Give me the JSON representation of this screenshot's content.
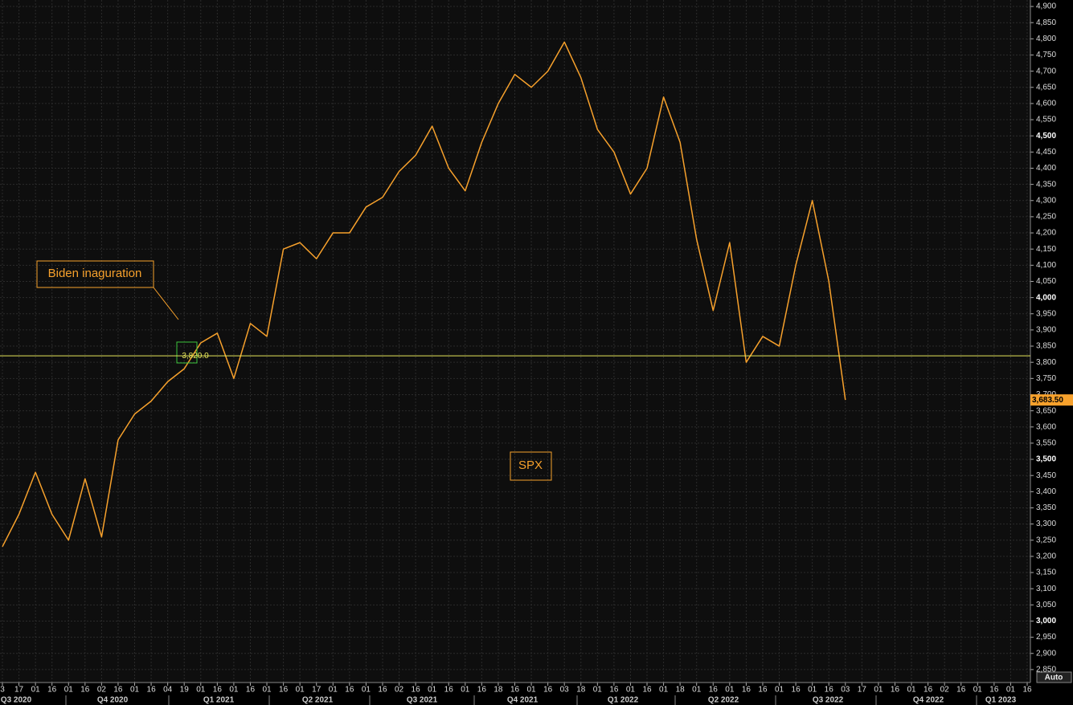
{
  "chart_data": {
    "type": "line",
    "categories": [
      "3",
      "17",
      "01",
      "16",
      "01",
      "16",
      "02",
      "16",
      "01",
      "16",
      "04",
      "19",
      "01",
      "16",
      "01",
      "16",
      "01",
      "16",
      "01",
      "17",
      "01",
      "16",
      "01",
      "16",
      "02",
      "16",
      "01",
      "16",
      "01",
      "16",
      "18",
      "16",
      "01",
      "16",
      "03",
      "18",
      "01",
      "16",
      "01",
      "16",
      "01",
      "18",
      "01",
      "16",
      "01",
      "16",
      "16",
      "01",
      "16",
      "01",
      "16",
      "03",
      "17",
      "01",
      "16",
      "01",
      "16",
      "02",
      "16",
      "01",
      "16",
      "01",
      "16"
    ],
    "quarters": [
      "Q3 2020",
      "Q4 2020",
      "Q1 2021",
      "Q2 2021",
      "Q3 2021",
      "Q4 2021",
      "Q1 2022",
      "Q2 2022",
      "Q3 2022",
      "Q4 2022",
      "Q1 2023"
    ],
    "series": [
      {
        "name": "SPX",
        "color": "#f7a12c",
        "values": [
          3230,
          3330,
          3460,
          3330,
          3250,
          3440,
          3260,
          3560,
          3640,
          3680,
          3740,
          3780,
          3860,
          3890,
          3750,
          3920,
          3880,
          4150,
          4170,
          4120,
          4200,
          4200,
          4280,
          4310,
          4390,
          4440,
          4530,
          4400,
          4330,
          4480,
          4600,
          4690,
          4650,
          4700,
          4790,
          4680,
          4520,
          4450,
          4320,
          4400,
          4620,
          4480,
          4180,
          3960,
          4170,
          3800,
          3880,
          3850,
          4100,
          4300,
          4050,
          3683.5,
          null,
          null,
          null,
          null,
          null,
          null,
          null,
          null,
          null,
          null,
          null
        ]
      }
    ],
    "ylim": [
      2810,
      4920
    ],
    "yticks": [
      {
        "value": 4900,
        "label": "4,900"
      },
      {
        "value": 4850,
        "label": "4,850"
      },
      {
        "value": 4800,
        "label": "4,800"
      },
      {
        "value": 4750,
        "label": "4,750"
      },
      {
        "value": 4700,
        "label": "4,700"
      },
      {
        "value": 4650,
        "label": "4,650"
      },
      {
        "value": 4600,
        "label": "4,600"
      },
      {
        "value": 4550,
        "label": "4,550"
      },
      {
        "value": 4500,
        "label": "4,500"
      },
      {
        "value": 4450,
        "label": "4,450"
      },
      {
        "value": 4400,
        "label": "4,400"
      },
      {
        "value": 4350,
        "label": "4,350"
      },
      {
        "value": 4300,
        "label": "4,300"
      },
      {
        "value": 4250,
        "label": "4,250"
      },
      {
        "value": 4200,
        "label": "4,200"
      },
      {
        "value": 4150,
        "label": "4,150"
      },
      {
        "value": 4100,
        "label": "4,100"
      },
      {
        "value": 4050,
        "label": "4,050"
      },
      {
        "value": 4000,
        "label": "4,000"
      },
      {
        "value": 3950,
        "label": "3,950"
      },
      {
        "value": 3900,
        "label": "3,900"
      },
      {
        "value": 3850,
        "label": "3,850"
      },
      {
        "value": 3800,
        "label": "3,800"
      },
      {
        "value": 3750,
        "label": "3,750"
      },
      {
        "value": 3700,
        "label": "3,700"
      },
      {
        "value": 3650,
        "label": "3,650"
      },
      {
        "value": 3600,
        "label": "3,600"
      },
      {
        "value": 3550,
        "label": "3,550"
      },
      {
        "value": 3500,
        "label": "3,500"
      },
      {
        "value": 3450,
        "label": "3,450"
      },
      {
        "value": 3400,
        "label": "3,400"
      },
      {
        "value": 3350,
        "label": "3,350"
      },
      {
        "value": 3300,
        "label": "3,300"
      },
      {
        "value": 3250,
        "label": "3,250"
      },
      {
        "value": 3200,
        "label": "3,200"
      },
      {
        "value": 3150,
        "label": "3,150"
      },
      {
        "value": 3100,
        "label": "3,100"
      },
      {
        "value": 3050,
        "label": "3,050"
      },
      {
        "value": 3000,
        "label": "3,000"
      },
      {
        "value": 2950,
        "label": "2,950"
      },
      {
        "value": 2900,
        "label": "2,900"
      },
      {
        "value": 2850,
        "label": "2,850"
      }
    ],
    "grid": true,
    "last_value": {
      "value": 3683.5,
      "label": "3,683.50"
    },
    "hline": {
      "value": 3820,
      "label": "3,820.0",
      "color": "#e6e65a"
    },
    "annotations": [
      "Biden inaguration",
      "SPX"
    ],
    "button": "Auto"
  }
}
